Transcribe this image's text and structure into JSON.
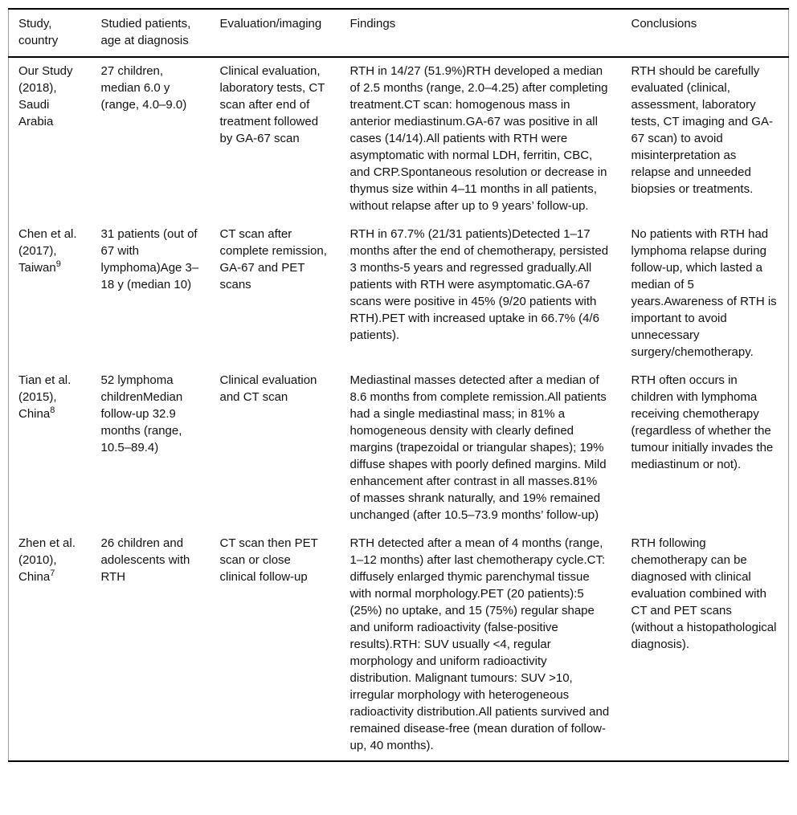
{
  "table": {
    "headers": [
      "Study, country",
      "Studied patients, age at diagnosis",
      "Evaluation/imaging",
      "Findings",
      "Conclusions"
    ],
    "rows": [
      {
        "study": {
          "text": "Our Study (2018), Saudi Arabia",
          "sup": ""
        },
        "patients": "27 children, median 6.0 y (range, 4.0–9.0)",
        "evaluation": "Clinical evaluation, laboratory tests, CT scan after end of treatment followed by GA-67 scan",
        "findings": "RTH in 14/27 (51.9%)RTH developed a median of 2.5 months (range, 2.0–4.25) after completing treatment.CT scan: homogenous mass in anterior mediastinum.GA-67 was positive in all cases (14/14).All patients with RTH were asymptomatic with normal LDH, ferritin, CBC, and CRP.Spontaneous resolution or decrease in thymus size within 4–11 months in all patients, without relapse after up to 9 years’ follow-up.",
        "conclusions": "RTH should be carefully evaluated (clinical, assessment, laboratory tests, CT imaging and GA-67 scan) to avoid misinterpretation as relapse and unneeded biopsies or treatments."
      },
      {
        "study": {
          "text": "Chen et al. (2017), Taiwan",
          "sup": "9"
        },
        "patients": "31 patients (out of 67 with lymphoma)Age 3–18 y (median 10)",
        "evaluation": "CT scan after complete remission, GA-67 and PET scans",
        "findings": "RTH in 67.7% (21/31 patients)Detected 1–17 months after the end of chemotherapy, persisted 3 months-5 years and regressed gradually.All patients with RTH were asymptomatic.GA-67 scans were positive in 45% (9/20 patients with RTH).PET with increased uptake in 66.7% (4/6 patients).",
        "conclusions": "No patients with RTH had lymphoma relapse during follow-up, which lasted a median of 5 years.Awareness of RTH is important to avoid unnecessary surgery/chemotherapy."
      },
      {
        "study": {
          "text": "Tian et al. (2015), China",
          "sup": "8"
        },
        "patients": "52 lymphoma childrenMedian follow-up 32.9 months (range, 10.5–89.4)",
        "evaluation": "Clinical evaluation and CT scan",
        "findings": "Mediastinal masses detected after a median of 8.6 months from complete remission.All patients had a single mediastinal mass; in 81% a homogeneous density with clearly defined margins (trapezoidal or triangular shapes); 19% diffuse shapes with poorly defined margins. Mild enhancement after contrast in all masses.81% of masses shrank naturally, and 19% remained unchanged (after 10.5–73.9 months’ follow-up)",
        "conclusions": "RTH often occurs in children with lymphoma receiving chemotherapy (regardless of whether the tumour initially invades the mediastinum or not)."
      },
      {
        "study": {
          "text": "Zhen et al. (2010), China",
          "sup": "7"
        },
        "patients": "26 children and adolescents with RTH",
        "evaluation": "CT scan then PET scan or close clinical follow-up",
        "findings": "RTH detected after a mean of 4 months (range, 1–12 months) after last chemotherapy cycle.CT: diffusely enlarged thymic parenchymal tissue with normal morphology.PET (20 patients):5 (25%) no uptake, and 15 (75%) regular shape and uniform radioactivity (false-positive results).RTH: SUV usually <4, regular morphology and uniform radioactivity distribution. Malignant tumours: SUV >10, irregular morphology with heterogeneous radioactivity distribution.All patients survived and remained disease-free (mean duration of follow-up, 40 months).",
        "conclusions": "RTH following chemotherapy can be diagnosed with clinical evaluation combined with CT and PET scans (without a histopathological diagnosis)."
      }
    ]
  }
}
